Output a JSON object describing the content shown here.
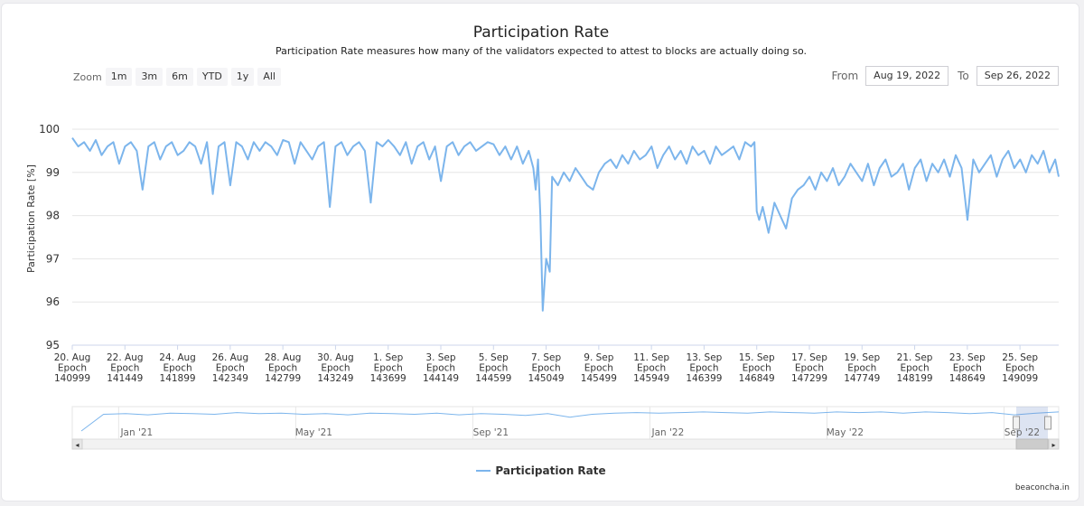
{
  "chart_data": {
    "type": "line",
    "title": "Participation Rate",
    "subtitle": "Participation Rate measures how many of the validators expected to attest to blocks are actually doing so.",
    "ylabel": "Participation Rate [%]",
    "ylim": [
      95,
      100
    ],
    "yticks": [
      95,
      96,
      97,
      98,
      99,
      100
    ],
    "grid": true,
    "legend": "bottom-center",
    "color": "#7cb5ec",
    "xticks": [
      {
        "date": "20. Aug",
        "epoch": "140999"
      },
      {
        "date": "22. Aug",
        "epoch": "141449"
      },
      {
        "date": "24. Aug",
        "epoch": "141899"
      },
      {
        "date": "26. Aug",
        "epoch": "142349"
      },
      {
        "date": "28. Aug",
        "epoch": "142799"
      },
      {
        "date": "30. Aug",
        "epoch": "143249"
      },
      {
        "date": "1. Sep",
        "epoch": "143699"
      },
      {
        "date": "3. Sep",
        "epoch": "144149"
      },
      {
        "date": "5. Sep",
        "epoch": "144599"
      },
      {
        "date": "7. Sep",
        "epoch": "145049"
      },
      {
        "date": "9. Sep",
        "epoch": "145499"
      },
      {
        "date": "11. Sep",
        "epoch": "145949"
      },
      {
        "date": "13. Sep",
        "epoch": "146399"
      },
      {
        "date": "15. Sep",
        "epoch": "146849"
      },
      {
        "date": "17. Sep",
        "epoch": "147299"
      },
      {
        "date": "19. Sep",
        "epoch": "147749"
      },
      {
        "date": "21. Sep",
        "epoch": "148199"
      },
      {
        "date": "23. Sep",
        "epoch": "148649"
      },
      {
        "date": "25. Sep",
        "epoch": "149099"
      }
    ],
    "epoch_label": "Epoch",
    "xlim": [
      140999,
      149430
    ],
    "series": [
      {
        "name": "Participation Rate",
        "x": [
          140999,
          141050,
          141100,
          141150,
          141200,
          141250,
          141300,
          141350,
          141400,
          141450,
          141500,
          141550,
          141600,
          141650,
          141700,
          141750,
          141800,
          141850,
          141900,
          141950,
          142000,
          142050,
          142100,
          142150,
          142200,
          142250,
          142300,
          142349,
          142400,
          142450,
          142500,
          142550,
          142600,
          142650,
          142700,
          142750,
          142800,
          142850,
          142900,
          142950,
          143000,
          143050,
          143100,
          143150,
          143200,
          143249,
          143300,
          143350,
          143400,
          143450,
          143500,
          143550,
          143600,
          143650,
          143700,
          143750,
          143800,
          143850,
          143900,
          143950,
          144000,
          144050,
          144100,
          144150,
          144200,
          144250,
          144300,
          144350,
          144400,
          144450,
          144500,
          144550,
          144600,
          144650,
          144700,
          144750,
          144800,
          144850,
          144900,
          144940,
          144960,
          144980,
          145000,
          145020,
          145049,
          145080,
          145100,
          145150,
          145200,
          145250,
          145300,
          145350,
          145400,
          145450,
          145500,
          145550,
          145600,
          145650,
          145700,
          145750,
          145800,
          145850,
          145900,
          145950,
          146000,
          146050,
          146100,
          146150,
          146200,
          146250,
          146300,
          146350,
          146400,
          146450,
          146500,
          146550,
          146600,
          146650,
          146700,
          146750,
          146800,
          146830,
          146849,
          146870,
          146900,
          146950,
          147000,
          147050,
          147100,
          147150,
          147200,
          147250,
          147300,
          147350,
          147400,
          147450,
          147500,
          147550,
          147600,
          147650,
          147700,
          147750,
          147800,
          147850,
          147900,
          147950,
          148000,
          148050,
          148100,
          148150,
          148200,
          148250,
          148300,
          148350,
          148400,
          148450,
          148500,
          148550,
          148600,
          148650,
          148700,
          148750,
          148800,
          148850,
          148900,
          148950,
          149000,
          149050,
          149100,
          149150,
          149200,
          149250,
          149300,
          149350,
          149400,
          149430
        ],
        "values": [
          99.8,
          99.6,
          99.7,
          99.5,
          99.75,
          99.4,
          99.6,
          99.7,
          99.2,
          99.6,
          99.7,
          99.5,
          98.6,
          99.6,
          99.7,
          99.3,
          99.6,
          99.7,
          99.4,
          99.5,
          99.7,
          99.6,
          99.2,
          99.7,
          98.5,
          99.6,
          99.7,
          98.7,
          99.7,
          99.6,
          99.3,
          99.7,
          99.5,
          99.7,
          99.6,
          99.4,
          99.75,
          99.7,
          99.2,
          99.7,
          99.5,
          99.3,
          99.6,
          99.7,
          98.2,
          99.6,
          99.7,
          99.4,
          99.6,
          99.7,
          99.5,
          98.3,
          99.7,
          99.6,
          99.75,
          99.6,
          99.4,
          99.7,
          99.2,
          99.6,
          99.7,
          99.3,
          99.6,
          98.8,
          99.6,
          99.7,
          99.4,
          99.6,
          99.7,
          99.5,
          99.6,
          99.7,
          99.65,
          99.4,
          99.6,
          99.3,
          99.6,
          99.2,
          99.5,
          99.1,
          98.6,
          99.3,
          98.0,
          95.8,
          97.0,
          96.7,
          98.9,
          98.7,
          99.0,
          98.8,
          99.1,
          98.9,
          98.7,
          98.6,
          99.0,
          99.2,
          99.3,
          99.1,
          99.4,
          99.2,
          99.5,
          99.3,
          99.4,
          99.6,
          99.1,
          99.4,
          99.6,
          99.3,
          99.5,
          99.2,
          99.6,
          99.4,
          99.5,
          99.2,
          99.6,
          99.4,
          99.5,
          99.6,
          99.3,
          99.7,
          99.6,
          99.7,
          98.1,
          97.9,
          98.2,
          97.6,
          98.3,
          98.0,
          97.7,
          98.4,
          98.6,
          98.7,
          98.9,
          98.6,
          99.0,
          98.8,
          99.1,
          98.7,
          98.9,
          99.2,
          99.0,
          98.8,
          99.2,
          98.7,
          99.1,
          99.3,
          98.9,
          99.0,
          99.2,
          98.6,
          99.1,
          99.3,
          98.8,
          99.2,
          99.0,
          99.3,
          98.9,
          99.4,
          99.1,
          97.9,
          99.3,
          99.0,
          99.2,
          99.4,
          98.9,
          99.3,
          99.5,
          99.1,
          99.3,
          99.0,
          99.4,
          99.2,
          99.5,
          99.0,
          99.3,
          98.9
        ]
      }
    ]
  },
  "zoom": {
    "label": "Zoom",
    "buttons": [
      "1m",
      "3m",
      "6m",
      "YTD",
      "1y",
      "All"
    ]
  },
  "range": {
    "from_label": "From",
    "from_value": "Aug 19, 2022",
    "to_label": "To",
    "to_value": "Sep 26, 2022"
  },
  "navigator": {
    "labels": [
      "Jan '21",
      "May '21",
      "Sep '21",
      "Jan '22",
      "May '22",
      "Sep '22"
    ],
    "overview_values": [
      96.4,
      99.3,
      99.4,
      99.2,
      99.5,
      99.4,
      99.3,
      99.6,
      99.4,
      99.5,
      99.3,
      99.4,
      99.2,
      99.5,
      99.4,
      99.3,
      99.5,
      99.2,
      99.4,
      99.3,
      99.1,
      99.4,
      98.8,
      99.3,
      99.5,
      99.6,
      99.5,
      99.6,
      99.7,
      99.6,
      99.5,
      99.7,
      99.6,
      99.5,
      99.7,
      99.6,
      99.7,
      99.5,
      99.7,
      99.6,
      99.4,
      99.6,
      99.2,
      99.5,
      99.7
    ],
    "selection": [
      0.957,
      1.0
    ]
  },
  "legend_label": "Participation Rate",
  "credit": "beaconcha.in"
}
